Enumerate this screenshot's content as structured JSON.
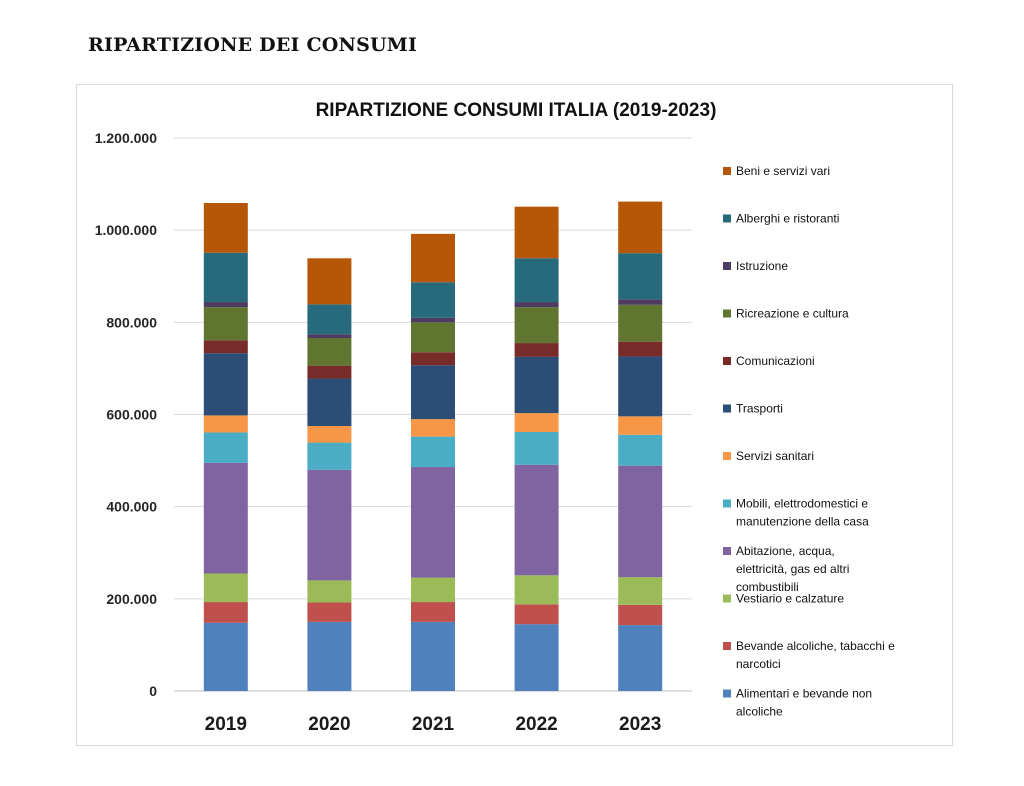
{
  "page": {
    "heading": "RIPARTIZIONE DEI CONSUMI"
  },
  "chart_data": {
    "type": "bar",
    "stacked": true,
    "title": "RIPARTIZIONE CONSUMI ITALIA (2019-2023)",
    "xlabel": "",
    "ylabel": "",
    "ylim": [
      0,
      1200000
    ],
    "yticks": [
      0,
      200000,
      400000,
      600000,
      800000,
      1000000,
      1200000
    ],
    "ytick_labels": [
      "0",
      "200.000",
      "400.000",
      "600.000",
      "800.000",
      "1.000.000",
      "1.200.000"
    ],
    "grid": true,
    "legend_position": "right",
    "categories": [
      "2019",
      "2020",
      "2021",
      "2022",
      "2023"
    ],
    "series": [
      {
        "name": "Alimentari e bevande non alcoliche",
        "color": "#4f81bd",
        "values": [
          148000,
          150000,
          150000,
          145000,
          143000
        ]
      },
      {
        "name": "Bevande alcoliche, tabacchi e narcotici",
        "color": "#c0504d",
        "values": [
          45000,
          42000,
          43000,
          43000,
          44000
        ]
      },
      {
        "name": "Vestiario e calzature",
        "color": "#9bbb59",
        "values": [
          62000,
          48000,
          53000,
          63000,
          60000
        ]
      },
      {
        "name": "Abitazione, acqua, elettricità, gas ed altri combustibili",
        "color": "#8064a2",
        "values": [
          240000,
          240000,
          240000,
          240000,
          242000
        ]
      },
      {
        "name": "Mobili, elettrodomestici e manutenzione della casa",
        "color": "#4bacc6",
        "values": [
          66000,
          59000,
          66000,
          71000,
          67000
        ]
      },
      {
        "name": "Servizi sanitari",
        "color": "#f79646",
        "values": [
          37000,
          36000,
          38000,
          41000,
          40000
        ]
      },
      {
        "name": "Trasporti",
        "color": "#2c4d75",
        "values": [
          135000,
          103000,
          117000,
          122000,
          130000
        ]
      },
      {
        "name": "Comunicazioni",
        "color": "#772c2a",
        "values": [
          28000,
          28000,
          28000,
          30000,
          32000
        ]
      },
      {
        "name": "Ricreazione e cultura",
        "color": "#5f7530",
        "values": [
          72000,
          60000,
          65000,
          78000,
          80000
        ]
      },
      {
        "name": "Istruzione",
        "color": "#4d3b62",
        "values": [
          11000,
          8000,
          10000,
          11000,
          12000
        ]
      },
      {
        "name": "Alberghi e ristoranti",
        "color": "#276a7c",
        "values": [
          107000,
          65000,
          77000,
          95000,
          100000
        ]
      },
      {
        "name": "Beni e servizi vari",
        "color": "#b65708",
        "values": [
          108000,
          100000,
          105000,
          112000,
          112000
        ]
      }
    ]
  }
}
